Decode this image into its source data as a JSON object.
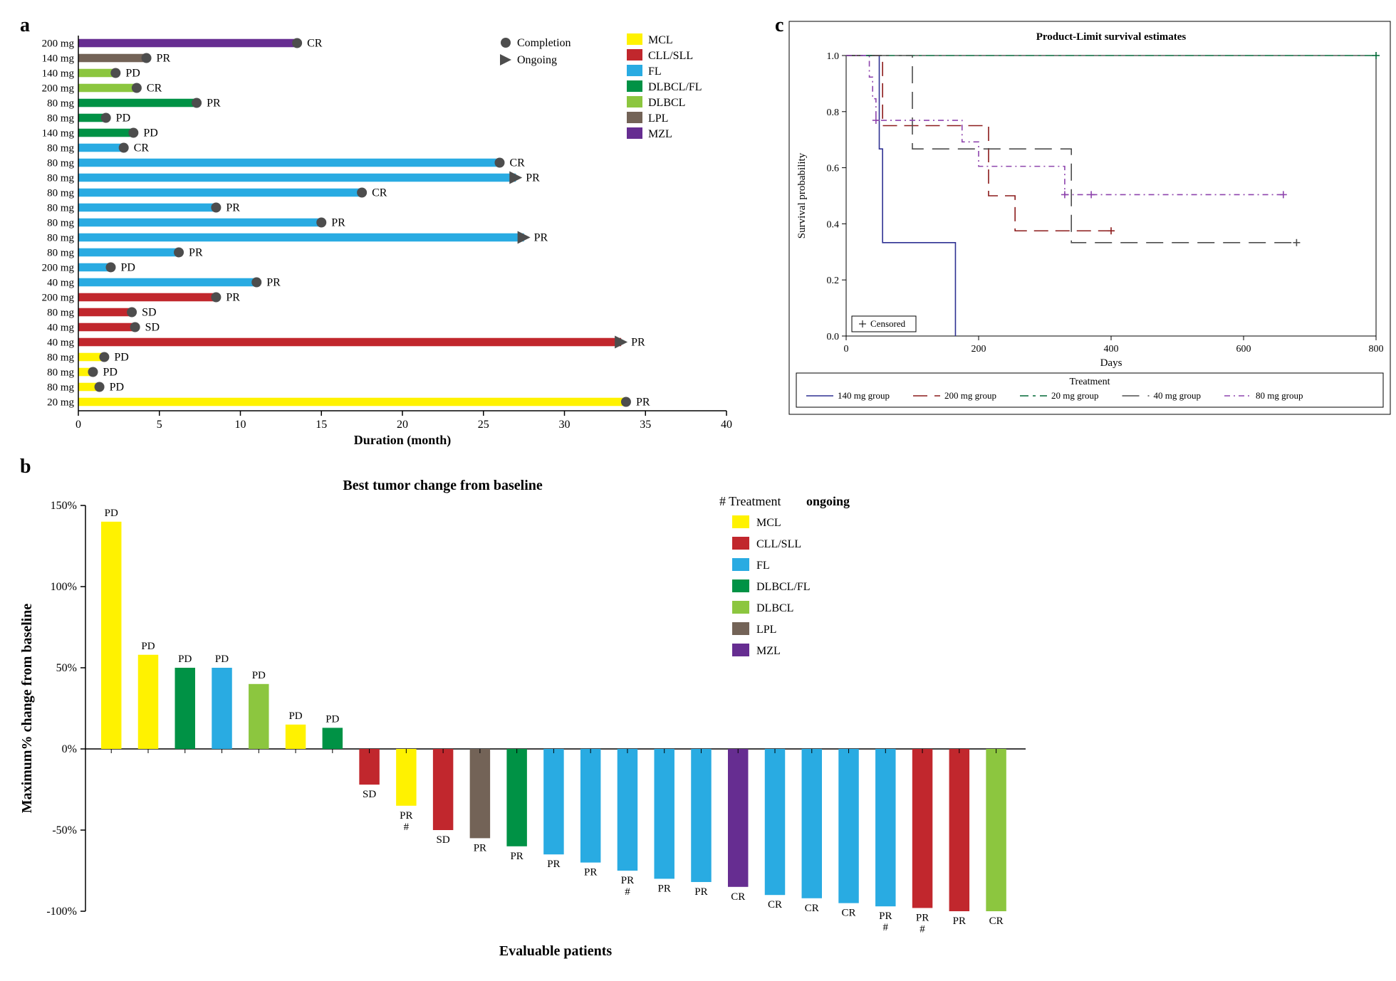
{
  "colors": {
    "MCL": "#fff200",
    "CLL_SLL": "#c1272d",
    "FL": "#29abe2",
    "DLBCL_FL": "#009245",
    "DLBCL": "#8cc63f",
    "LPL": "#736357",
    "MZL": "#662d91",
    "dot": "#4d4d4d",
    "axis": "#000000",
    "t140": "#2e3192",
    "t200": "#8b1a1a",
    "t20": "#006837",
    "t40": "#4d4d4d",
    "t80": "#8e44ad"
  },
  "panelA": {
    "label": "a",
    "xlabel": "Duration (month)",
    "xmin": 0,
    "xmax": 40,
    "xstep": 5,
    "legend1": [
      {
        "shape": "circle",
        "label": "Completion"
      },
      {
        "shape": "triangle",
        "label": "Ongoing"
      }
    ],
    "legend2": [
      {
        "key": "MCL",
        "label": "MCL"
      },
      {
        "key": "CLL_SLL",
        "label": "CLL/SLL"
      },
      {
        "key": "FL",
        "label": "FL"
      },
      {
        "key": "DLBCL_FL",
        "label": "DLBCL/FL"
      },
      {
        "key": "DLBCL",
        "label": "DLBCL"
      },
      {
        "key": "LPL",
        "label": "LPL"
      },
      {
        "key": "MZL",
        "label": "MZL"
      }
    ],
    "rows": [
      {
        "dose": "200 mg",
        "key": "MZL",
        "end": 13.5,
        "marker": "circle",
        "resp": "CR"
      },
      {
        "dose": "140 mg",
        "key": "LPL",
        "end": 4.2,
        "marker": "circle",
        "resp": "PR"
      },
      {
        "dose": "140 mg",
        "key": "DLBCL",
        "end": 2.3,
        "marker": "circle",
        "resp": "PD"
      },
      {
        "dose": "200 mg",
        "key": "DLBCL",
        "end": 3.6,
        "marker": "circle",
        "resp": "CR"
      },
      {
        "dose": "80 mg",
        "key": "DLBCL_FL",
        "end": 7.3,
        "marker": "circle",
        "resp": "PR"
      },
      {
        "dose": "80 mg",
        "key": "DLBCL_FL",
        "end": 1.7,
        "marker": "circle",
        "resp": "PD"
      },
      {
        "dose": "140 mg",
        "key": "DLBCL_FL",
        "end": 3.4,
        "marker": "circle",
        "resp": "PD"
      },
      {
        "dose": "80 mg",
        "key": "FL",
        "end": 2.8,
        "marker": "circle",
        "resp": "CR"
      },
      {
        "dose": "80 mg",
        "key": "FL",
        "end": 26.0,
        "marker": "circle",
        "resp": "CR"
      },
      {
        "dose": "80 mg",
        "key": "FL",
        "end": 27.0,
        "marker": "triangle",
        "resp": "PR"
      },
      {
        "dose": "80 mg",
        "key": "FL",
        "end": 17.5,
        "marker": "circle",
        "resp": "CR"
      },
      {
        "dose": "80 mg",
        "key": "FL",
        "end": 8.5,
        "marker": "circle",
        "resp": "PR"
      },
      {
        "dose": "80 mg",
        "key": "FL",
        "end": 15.0,
        "marker": "circle",
        "resp": "PR"
      },
      {
        "dose": "80 mg",
        "key": "FL",
        "end": 27.5,
        "marker": "triangle",
        "resp": "PR"
      },
      {
        "dose": "80 mg",
        "key": "FL",
        "end": 6.2,
        "marker": "circle",
        "resp": "PR"
      },
      {
        "dose": "200 mg",
        "key": "FL",
        "end": 2.0,
        "marker": "circle",
        "resp": "PD"
      },
      {
        "dose": "40 mg",
        "key": "FL",
        "end": 11.0,
        "marker": "circle",
        "resp": "PR"
      },
      {
        "dose": "200 mg",
        "key": "CLL_SLL",
        "end": 8.5,
        "marker": "circle",
        "resp": "PR"
      },
      {
        "dose": "80 mg",
        "key": "CLL_SLL",
        "end": 3.3,
        "marker": "circle",
        "resp": "SD"
      },
      {
        "dose": "40 mg",
        "key": "CLL_SLL",
        "end": 3.5,
        "marker": "circle",
        "resp": "SD"
      },
      {
        "dose": "40 mg",
        "key": "CLL_SLL",
        "end": 33.5,
        "marker": "triangle",
        "resp": "PR"
      },
      {
        "dose": "80 mg",
        "key": "MCL",
        "end": 1.6,
        "marker": "circle",
        "resp": "PD"
      },
      {
        "dose": "80 mg",
        "key": "MCL",
        "end": 0.9,
        "marker": "circle",
        "resp": "PD"
      },
      {
        "dose": "80 mg",
        "key": "MCL",
        "end": 1.3,
        "marker": "circle",
        "resp": "PD"
      },
      {
        "dose": "20 mg",
        "key": "MCL",
        "end": 33.8,
        "marker": "circle",
        "resp": "PR"
      }
    ]
  },
  "panelB": {
    "label": "b",
    "title": "Best tumor change from baseline",
    "ylabel": "Maximum% change from baseline",
    "xlabel": "Evaluable  patients",
    "ymin": -100,
    "ymax": 150,
    "ystep": 50,
    "legendTitle": "# Treatment ongoing",
    "legend": [
      {
        "key": "MCL",
        "label": "MCL"
      },
      {
        "key": "CLL_SLL",
        "label": "CLL/SLL"
      },
      {
        "key": "FL",
        "label": "FL"
      },
      {
        "key": "DLBCL_FL",
        "label": "DLBCL/FL"
      },
      {
        "key": "DLBCL",
        "label": "DLBCL"
      },
      {
        "key": "LPL",
        "label": "LPL"
      },
      {
        "key": "MZL",
        "label": "MZL"
      }
    ],
    "bars": [
      {
        "key": "MCL",
        "val": 140,
        "resp": "PD",
        "hash": false
      },
      {
        "key": "MCL",
        "val": 58,
        "resp": "PD",
        "hash": false
      },
      {
        "key": "DLBCL_FL",
        "val": 50,
        "resp": "PD",
        "hash": false
      },
      {
        "key": "FL",
        "val": 50,
        "resp": "PD",
        "hash": false
      },
      {
        "key": "DLBCL",
        "val": 40,
        "resp": "PD",
        "hash": false
      },
      {
        "key": "MCL",
        "val": 15,
        "resp": "PD",
        "hash": false
      },
      {
        "key": "DLBCL_FL",
        "val": 13,
        "resp": "PD",
        "hash": false
      },
      {
        "key": "CLL_SLL",
        "val": -22,
        "resp": "SD",
        "hash": false
      },
      {
        "key": "MCL",
        "val": -35,
        "resp": "PR",
        "hash": true
      },
      {
        "key": "CLL_SLL",
        "val": -50,
        "resp": "SD",
        "hash": false
      },
      {
        "key": "LPL",
        "val": -55,
        "resp": "PR",
        "hash": false
      },
      {
        "key": "DLBCL_FL",
        "val": -60,
        "resp": "PR",
        "hash": false
      },
      {
        "key": "FL",
        "val": -65,
        "resp": "PR",
        "hash": false
      },
      {
        "key": "FL",
        "val": -70,
        "resp": "PR",
        "hash": false
      },
      {
        "key": "FL",
        "val": -75,
        "resp": "PR",
        "hash": true
      },
      {
        "key": "FL",
        "val": -80,
        "resp": "PR",
        "hash": false
      },
      {
        "key": "FL",
        "val": -82,
        "resp": "PR",
        "hash": false
      },
      {
        "key": "MZL",
        "val": -85,
        "resp": "CR",
        "hash": false
      },
      {
        "key": "FL",
        "val": -90,
        "resp": "CR",
        "hash": false
      },
      {
        "key": "FL",
        "val": -92,
        "resp": "CR",
        "hash": false
      },
      {
        "key": "FL",
        "val": -95,
        "resp": "CR",
        "hash": false
      },
      {
        "key": "FL",
        "val": -97,
        "resp": "PR",
        "hash": true
      },
      {
        "key": "CLL_SLL",
        "val": -98,
        "resp": "PR",
        "hash": true
      },
      {
        "key": "CLL_SLL",
        "val": -100,
        "resp": "PR",
        "hash": false
      },
      {
        "key": "DLBCL",
        "val": -100,
        "resp": "CR",
        "hash": false
      }
    ]
  },
  "panelC": {
    "label": "c",
    "title": "Product-Limit survival estimates",
    "xlabel": "Days",
    "ylabel": "Survival probability",
    "legendTitle": "Treatment",
    "xmin": 0,
    "xmax": 800,
    "xstep": 200,
    "ymin": 0,
    "ymax": 1.0,
    "ystep": 0.2,
    "censoredLabel": "Censored",
    "series": [
      {
        "name": "140 mg group",
        "colorKey": "t140",
        "dash": "",
        "points": [
          [
            0,
            1.0
          ],
          [
            50,
            1.0
          ],
          [
            50,
            0.667
          ],
          [
            55,
            0.667
          ],
          [
            55,
            0.333
          ],
          [
            165,
            0.333
          ],
          [
            165,
            0.0
          ]
        ],
        "censor": []
      },
      {
        "name": "200 mg group",
        "colorKey": "t200",
        "dash": "20 10",
        "points": [
          [
            0,
            1.0
          ],
          [
            55,
            1.0
          ],
          [
            55,
            0.75
          ],
          [
            215,
            0.75
          ],
          [
            215,
            0.5
          ],
          [
            255,
            0.5
          ],
          [
            255,
            0.375
          ],
          [
            400,
            0.375
          ]
        ],
        "censor": [
          [
            400,
            0.375
          ]
        ]
      },
      {
        "name": "20 mg group",
        "colorKey": "t20",
        "dash": "12 6 4 6",
        "points": [
          [
            0,
            1.0
          ],
          [
            800,
            1.0
          ]
        ],
        "censor": [
          [
            800,
            1.0
          ]
        ]
      },
      {
        "name": "40 mg group",
        "colorKey": "t40",
        "dash": "24 12",
        "points": [
          [
            0,
            1.0
          ],
          [
            100,
            1.0
          ],
          [
            100,
            0.667
          ],
          [
            340,
            0.667
          ],
          [
            340,
            0.333
          ],
          [
            680,
            0.333
          ]
        ],
        "censor": [
          [
            680,
            0.333
          ]
        ]
      },
      {
        "name": "80 mg group",
        "colorKey": "t80",
        "dash": "8 5 2 5",
        "points": [
          [
            0,
            1.0
          ],
          [
            35,
            1.0
          ],
          [
            35,
            0.923
          ],
          [
            40,
            0.923
          ],
          [
            40,
            0.846
          ],
          [
            45,
            0.846
          ],
          [
            45,
            0.769
          ],
          [
            175,
            0.769
          ],
          [
            175,
            0.692
          ],
          [
            200,
            0.692
          ],
          [
            200,
            0.605
          ],
          [
            330,
            0.605
          ],
          [
            330,
            0.504
          ],
          [
            660,
            0.504
          ]
        ],
        "censor": [
          [
            45,
            0.769
          ],
          [
            330,
            0.504
          ],
          [
            370,
            0.504
          ],
          [
            660,
            0.504
          ]
        ]
      }
    ]
  }
}
